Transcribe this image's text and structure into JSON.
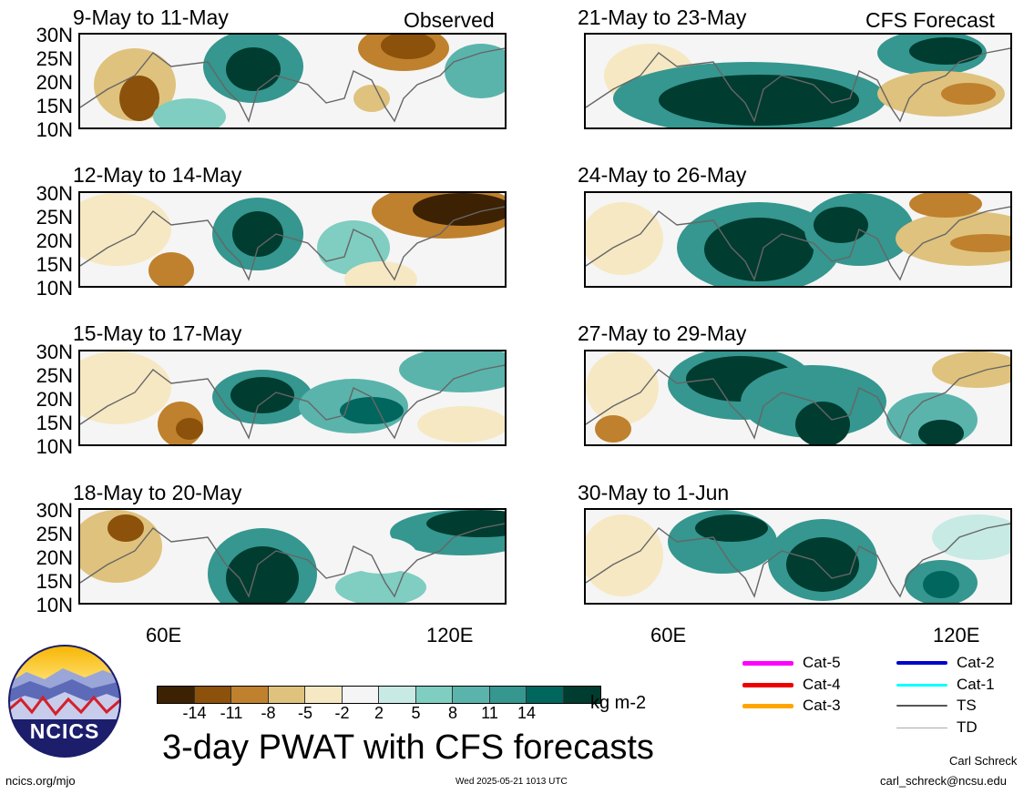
{
  "panels": [
    {
      "id": "obs1",
      "title": "9-May to 11-May",
      "tag": "Observed"
    },
    {
      "id": "obs2",
      "title": "12-May to 14-May",
      "tag": ""
    },
    {
      "id": "obs3",
      "title": "15-May to 17-May",
      "tag": ""
    },
    {
      "id": "obs4",
      "title": "18-May to 20-May",
      "tag": ""
    },
    {
      "id": "fc1",
      "title": "21-May to 23-May",
      "tag": "CFS Forecast"
    },
    {
      "id": "fc2",
      "title": "24-May to 26-May",
      "tag": ""
    },
    {
      "id": "fc3",
      "title": "27-May to 29-May",
      "tag": ""
    },
    {
      "id": "fc4",
      "title": "30-May to 1-Jun",
      "tag": ""
    }
  ],
  "lat_labels": [
    "30N",
    "25N",
    "20N",
    "15N",
    "10N"
  ],
  "lon_labels": [
    "60E",
    "120E"
  ],
  "colorbar": {
    "colors": [
      "#3d2103",
      "#8c510a",
      "#bf812d",
      "#dfc27d",
      "#f6e8c3",
      "#f5f5f5",
      "#c7eae5",
      "#80cdc1",
      "#5ab4ac",
      "#35978f",
      "#01665e",
      "#003c30"
    ],
    "ticks": [
      "-14",
      "-11",
      "-8",
      "-5",
      "-2",
      "2",
      "5",
      "8",
      "11",
      "14"
    ],
    "units": "kg m-2"
  },
  "logo": {
    "text": "NCICS"
  },
  "main_title": "3-day PWAT with CFS forecasts",
  "legend": [
    {
      "label": "Cat-5",
      "color": "#ff00ff"
    },
    {
      "label": "Cat-4",
      "color": "#ee0000"
    },
    {
      "label": "Cat-3",
      "color": "#ffa500"
    },
    {
      "label": "Cat-2",
      "color": "#0000cc"
    },
    {
      "label": "Cat-1",
      "color": "#00ffff"
    },
    {
      "label": "TS",
      "color": "#555555"
    },
    {
      "label": "TD",
      "color": "#aaaaaa"
    }
  ],
  "footer": {
    "url": "ncics.org/mjo",
    "timestamp": "Wed 2025-05-21 1013 UTC",
    "author": "Carl Schreck",
    "email": "carl_schreck@ncsu.edu"
  }
}
